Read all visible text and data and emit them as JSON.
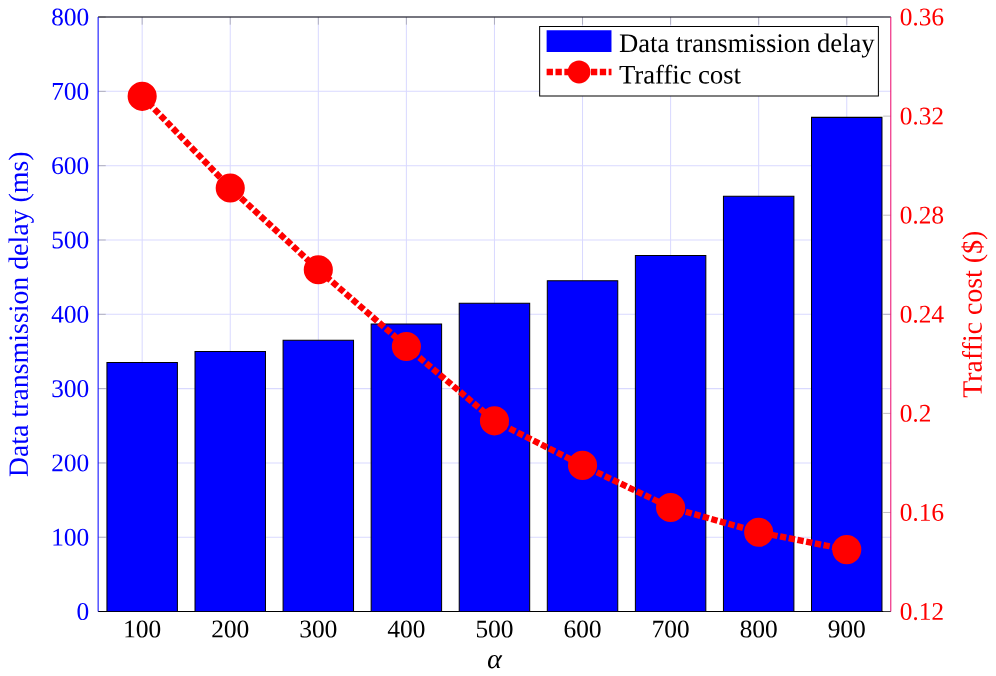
{
  "chart_data": {
    "type": "bar",
    "xlabel": "α",
    "ylabel": "Data transmission delay (ms)",
    "y2label": "Traffic cost ($)",
    "categories": [
      "100",
      "200",
      "300",
      "400",
      "500",
      "600",
      "700",
      "800",
      "900"
    ],
    "series": [
      {
        "name": "Data transmission delay",
        "color": "#0000ff",
        "values": [
          335,
          350,
          365,
          387,
          415,
          445,
          479,
          559,
          665
        ]
      },
      {
        "name": "Traffic cost",
        "type": "line",
        "axis": "y2",
        "color": "#ff0000",
        "marker": "circle",
        "line_style": "dotted",
        "values": [
          0.328,
          0.291,
          0.258,
          0.227,
          0.197,
          0.179,
          0.162,
          0.152,
          0.145
        ]
      }
    ],
    "ylim": [
      0,
      800
    ],
    "yticks": [
      0,
      100,
      200,
      300,
      400,
      500,
      600,
      700,
      800
    ],
    "y2lim": [
      0.12,
      0.36
    ],
    "y2ticks": [
      0.12,
      0.16,
      0.2,
      0.24,
      0.28,
      0.32,
      0.36
    ],
    "grid": true,
    "legend": "top right"
  }
}
